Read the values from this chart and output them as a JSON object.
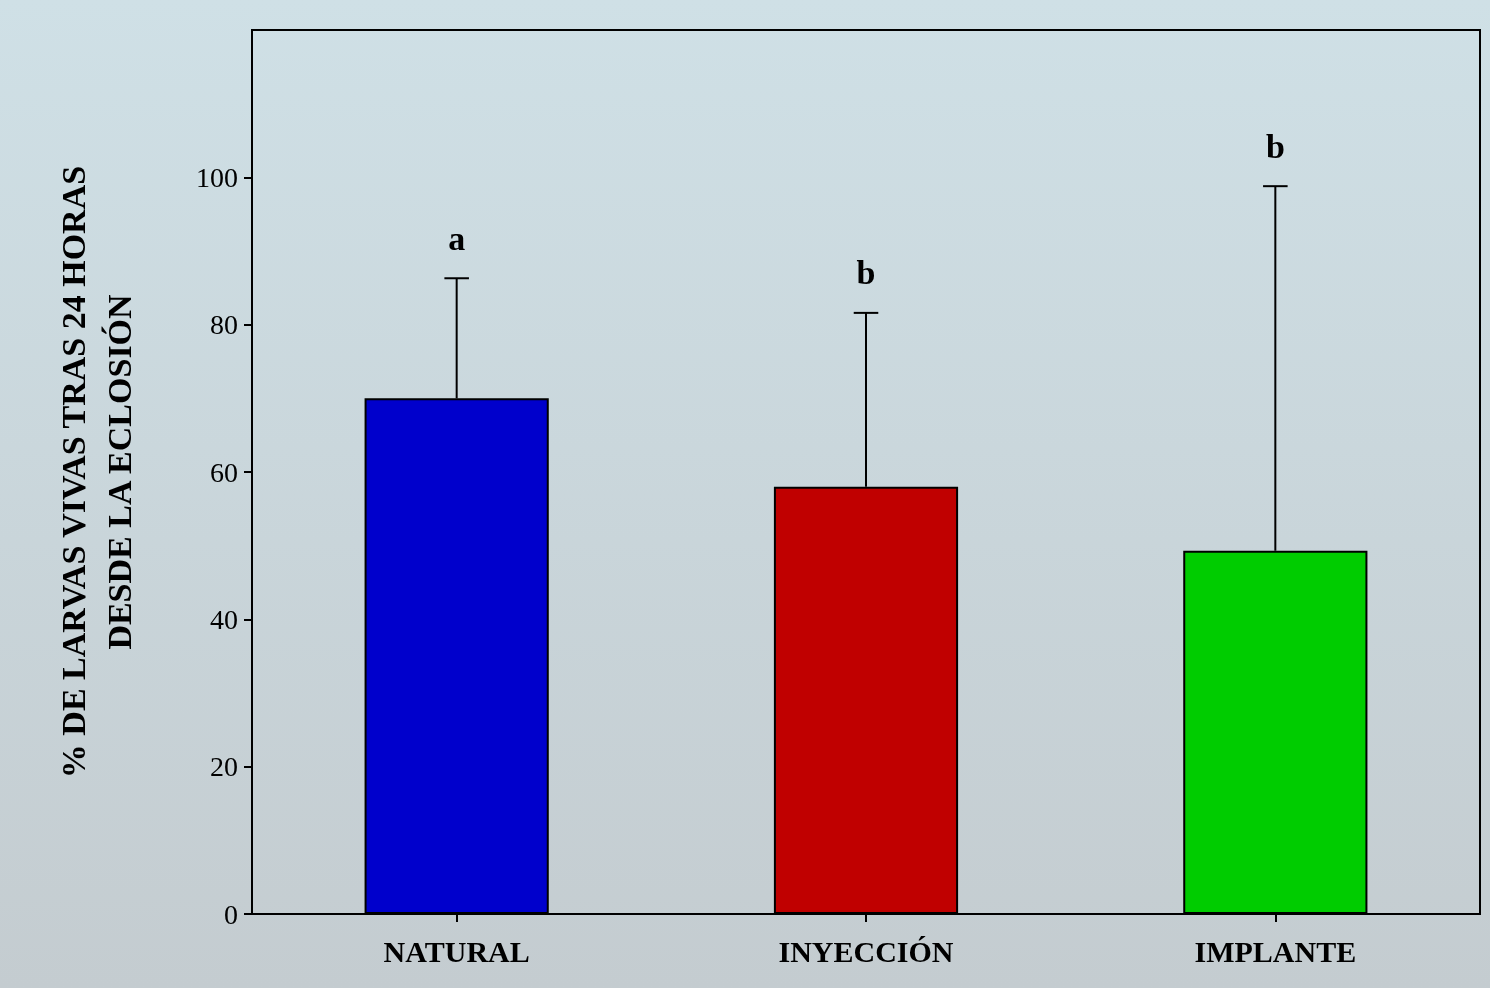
{
  "chart_data": {
    "type": "bar",
    "ylabel": "% DE LARVAS VIVAS TRAS 24 HORAS\nDESDE LA ECLOSIÓN",
    "categories": [
      "NATURAL",
      "INYECCIÓN",
      "IMPLANTE"
    ],
    "values": [
      70,
      58,
      49.3
    ],
    "colors": [
      "#0000cc",
      "#c00000",
      "#00cc00"
    ],
    "errors": [
      [
        70,
        86.3
      ],
      [
        58,
        81.6
      ],
      [
        49.3,
        98.8
      ]
    ],
    "ylim": [
      0,
      120
    ],
    "yticks": [
      0,
      20,
      40,
      60,
      80,
      100
    ],
    "grid": false,
    "annotations": [
      "a",
      "b",
      "b"
    ]
  }
}
